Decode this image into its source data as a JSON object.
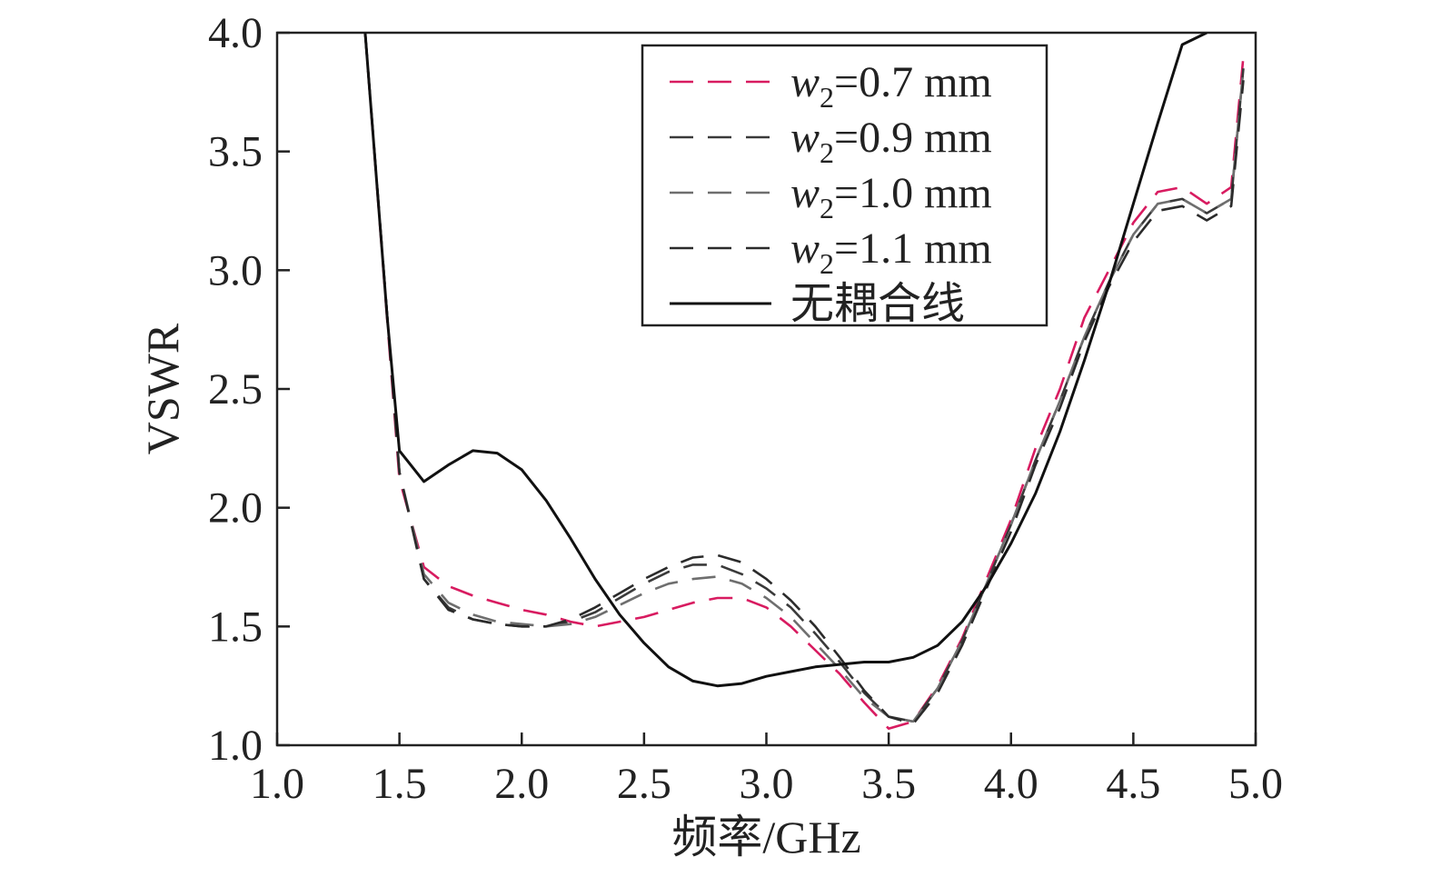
{
  "chart_data": {
    "type": "line",
    "xlabel": "频率/GHz",
    "ylabel": "VSWR",
    "xlim": [
      1.0,
      5.0
    ],
    "ylim": [
      1.0,
      4.0
    ],
    "xticks": [
      "1.0",
      "1.5",
      "2.0",
      "2.5",
      "3.0",
      "3.5",
      "4.0",
      "4.5",
      "5.0"
    ],
    "yticks": [
      "1.0",
      "1.5",
      "2.0",
      "2.5",
      "3.0",
      "3.5",
      "4.0"
    ],
    "grid": false,
    "legend_position": "top-right",
    "series": [
      {
        "name": "w2=0.7 mm",
        "legend_label": {
          "symbol": "w",
          "subscript": "2",
          "rest": "=0.7 mm"
        },
        "color": "#d81b60",
        "style": "dashed",
        "x": [
          1.36,
          1.5,
          1.6,
          1.7,
          1.8,
          1.9,
          2.0,
          2.1,
          2.2,
          2.3,
          2.4,
          2.5,
          2.6,
          2.7,
          2.8,
          2.9,
          3.0,
          3.1,
          3.2,
          3.3,
          3.4,
          3.5,
          3.6,
          3.7,
          3.8,
          3.9,
          4.0,
          4.1,
          4.2,
          4.3,
          4.4,
          4.5,
          4.6,
          4.7,
          4.8,
          4.9,
          4.95
        ],
        "y": [
          4.0,
          2.12,
          1.75,
          1.67,
          1.63,
          1.6,
          1.57,
          1.55,
          1.52,
          1.5,
          1.52,
          1.54,
          1.57,
          1.6,
          1.62,
          1.62,
          1.58,
          1.5,
          1.4,
          1.3,
          1.18,
          1.07,
          1.1,
          1.25,
          1.45,
          1.7,
          1.95,
          2.25,
          2.5,
          2.8,
          3.0,
          3.2,
          3.33,
          3.35,
          3.28,
          3.35,
          3.9
        ]
      },
      {
        "name": "w2=0.9 mm",
        "legend_label": {
          "symbol": "w",
          "subscript": "2",
          "rest": "=0.9 mm"
        },
        "color": "#3a3a3a",
        "style": "dashed",
        "x": [
          1.36,
          1.5,
          1.6,
          1.7,
          1.8,
          1.9,
          2.0,
          2.1,
          2.2,
          2.3,
          2.4,
          2.5,
          2.6,
          2.7,
          2.8,
          2.9,
          3.0,
          3.1,
          3.2,
          3.3,
          3.4,
          3.5,
          3.6,
          3.7,
          3.8,
          3.9,
          4.0,
          4.1,
          4.2,
          4.3,
          4.4,
          4.5,
          4.6,
          4.7,
          4.8,
          4.9,
          4.95
        ],
        "y": [
          4.0,
          2.15,
          1.7,
          1.58,
          1.53,
          1.51,
          1.5,
          1.5,
          1.52,
          1.56,
          1.62,
          1.68,
          1.73,
          1.76,
          1.76,
          1.72,
          1.66,
          1.58,
          1.47,
          1.35,
          1.22,
          1.12,
          1.1,
          1.24,
          1.44,
          1.68,
          1.93,
          2.2,
          2.45,
          2.72,
          2.95,
          3.15,
          3.28,
          3.3,
          3.24,
          3.3,
          3.85
        ]
      },
      {
        "name": "w2=1.0 mm",
        "legend_label": {
          "symbol": "w",
          "subscript": "2",
          "rest": "=1.0 mm"
        },
        "color": "#6e6e6e",
        "style": "dashed",
        "x": [
          1.36,
          1.5,
          1.6,
          1.7,
          1.8,
          1.9,
          2.0,
          2.1,
          2.2,
          2.3,
          2.4,
          2.5,
          2.6,
          2.7,
          2.8,
          2.9,
          3.0,
          3.1,
          3.2,
          3.3,
          3.4,
          3.5,
          3.6,
          3.7,
          3.8,
          3.9,
          4.0,
          4.1,
          4.2,
          4.3,
          4.4,
          4.5,
          4.6,
          4.7,
          4.8,
          4.9,
          4.95
        ],
        "y": [
          4.0,
          2.15,
          1.72,
          1.6,
          1.55,
          1.52,
          1.51,
          1.5,
          1.51,
          1.54,
          1.59,
          1.64,
          1.68,
          1.7,
          1.71,
          1.68,
          1.62,
          1.54,
          1.43,
          1.32,
          1.2,
          1.12,
          1.1,
          1.24,
          1.44,
          1.68,
          1.93,
          2.2,
          2.45,
          2.72,
          2.95,
          3.15,
          3.28,
          3.3,
          3.24,
          3.3,
          3.85
        ]
      },
      {
        "name": "w2=1.1 mm",
        "legend_label": {
          "symbol": "w",
          "subscript": "2",
          "rest": "=1.1 mm"
        },
        "color": "#2b2b2b",
        "style": "dashed",
        "x": [
          1.36,
          1.5,
          1.6,
          1.7,
          1.8,
          1.9,
          2.0,
          2.1,
          2.2,
          2.3,
          2.4,
          2.5,
          2.6,
          2.7,
          2.8,
          2.9,
          3.0,
          3.1,
          3.2,
          3.3,
          3.4,
          3.5,
          3.6,
          3.7,
          3.8,
          3.9,
          4.0,
          4.1,
          4.2,
          4.3,
          4.4,
          4.5,
          4.6,
          4.7,
          4.8,
          4.9,
          4.95
        ],
        "y": [
          4.0,
          2.15,
          1.7,
          1.57,
          1.53,
          1.51,
          1.5,
          1.5,
          1.53,
          1.58,
          1.64,
          1.7,
          1.75,
          1.79,
          1.8,
          1.77,
          1.7,
          1.61,
          1.5,
          1.37,
          1.23,
          1.12,
          1.09,
          1.22,
          1.42,
          1.66,
          1.9,
          2.18,
          2.42,
          2.7,
          2.93,
          3.12,
          3.25,
          3.27,
          3.21,
          3.27,
          3.8
        ]
      },
      {
        "name": "无耦合线",
        "legend_label": {
          "symbol": "",
          "subscript": "",
          "rest": "无耦合线"
        },
        "color": "#111111",
        "style": "solid",
        "x": [
          1.36,
          1.45,
          1.5,
          1.6,
          1.7,
          1.8,
          1.9,
          2.0,
          2.1,
          2.2,
          2.3,
          2.4,
          2.5,
          2.6,
          2.7,
          2.8,
          2.9,
          3.0,
          3.1,
          3.2,
          3.3,
          3.4,
          3.5,
          3.6,
          3.7,
          3.8,
          3.9,
          4.0,
          4.1,
          4.2,
          4.3,
          4.4,
          4.5,
          4.6,
          4.7,
          4.8
        ],
        "y": [
          4.0,
          2.8,
          2.24,
          2.11,
          2.18,
          2.24,
          2.23,
          2.16,
          2.03,
          1.87,
          1.7,
          1.55,
          1.43,
          1.33,
          1.27,
          1.25,
          1.26,
          1.29,
          1.31,
          1.33,
          1.34,
          1.35,
          1.35,
          1.37,
          1.42,
          1.52,
          1.67,
          1.85,
          2.06,
          2.32,
          2.62,
          2.94,
          3.28,
          3.62,
          3.95,
          4.0
        ]
      }
    ]
  }
}
